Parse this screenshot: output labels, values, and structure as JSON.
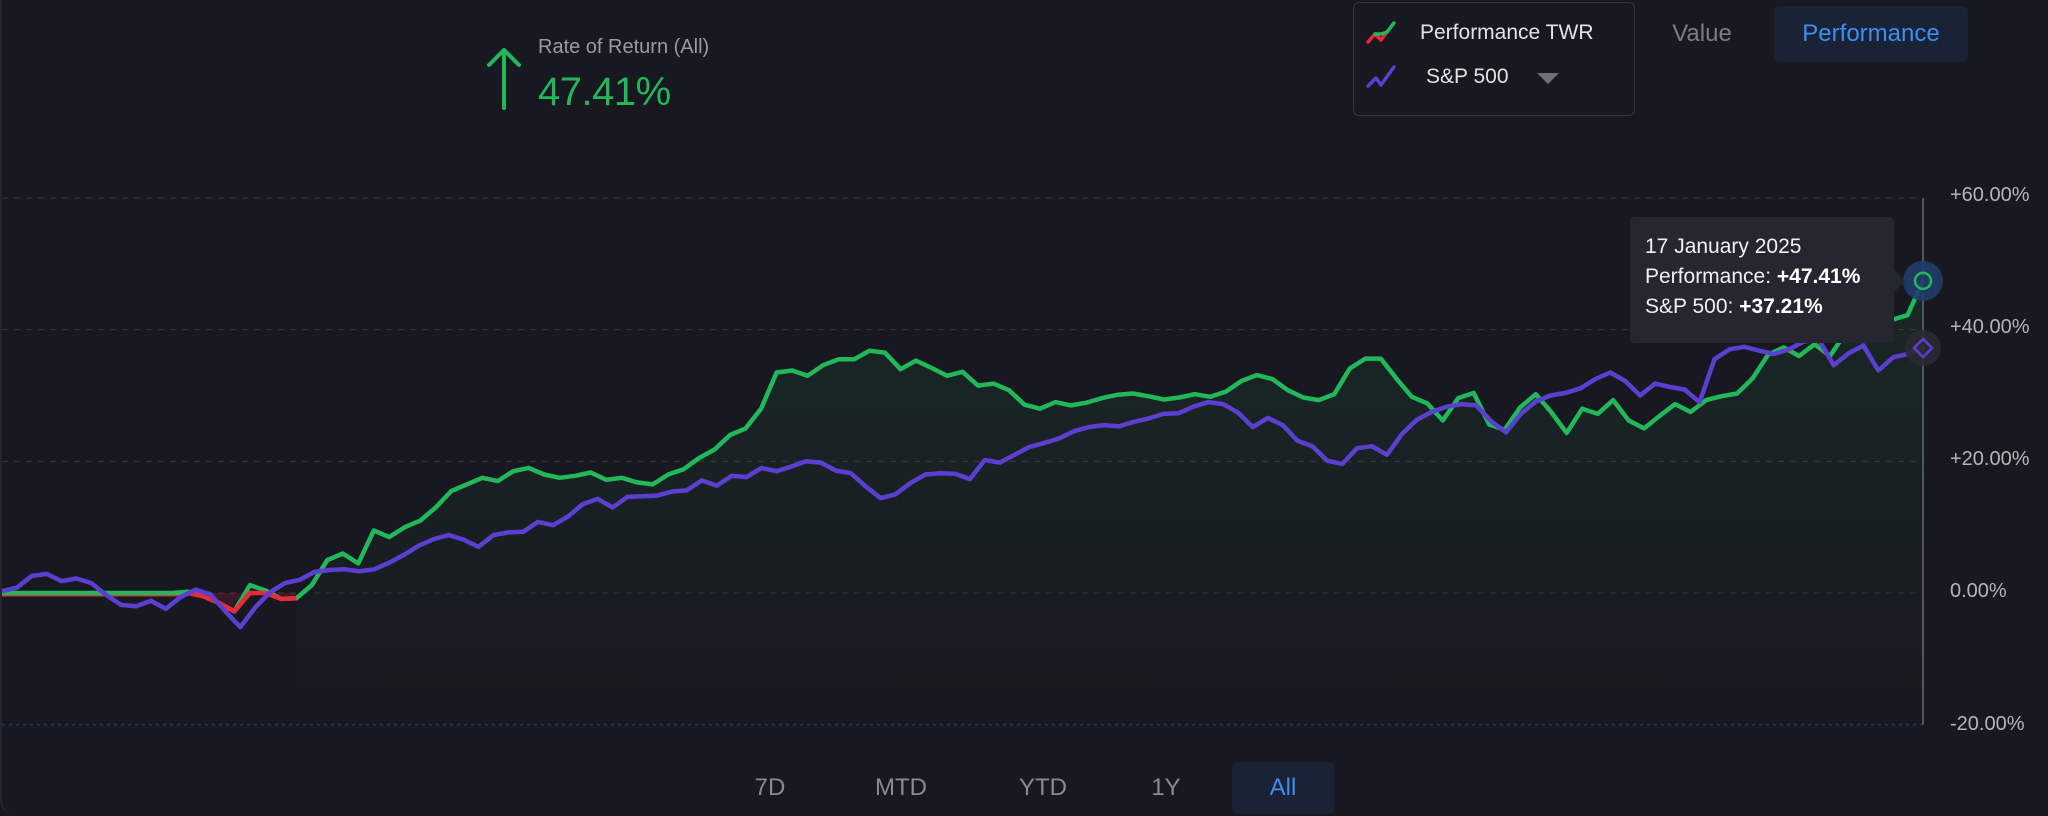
{
  "summary": {
    "label": "Rate of Return (All)",
    "value": "47.41%",
    "direction_icon": "arrow-up-icon",
    "color": "#22b85a"
  },
  "legend": {
    "items": [
      {
        "label": "Performance TWR",
        "icon": "line-chart-icon",
        "colors": [
          "#e8283c",
          "#22b85a"
        ]
      },
      {
        "label": "S&P 500",
        "icon": "line-chart-icon",
        "colors": [
          "#5b3fd0"
        ],
        "dropdown": "caret-down-icon"
      }
    ]
  },
  "view_toggle": {
    "options": [
      "Value",
      "Performance"
    ],
    "selected": "Performance"
  },
  "tooltip": {
    "date": "17 January 2025",
    "performance_label": "Performance: ",
    "performance_value": "+47.41%",
    "sp500_label": "S&P 500: ",
    "sp500_value": "+37.21%"
  },
  "range_buttons": {
    "options": [
      "7D",
      "MTD",
      "YTD",
      "1Y",
      "All"
    ],
    "selected": "All"
  },
  "colors": {
    "background": "#181820",
    "performance_positive": "#22b85a",
    "performance_negative": "#e8283c",
    "benchmark": "#5b3fd0",
    "accent": "#3d8ef0",
    "active_button_bg": "#1a2236"
  },
  "chart_data": {
    "type": "line",
    "title": "Rate of Return (All)",
    "xlabel": "",
    "ylabel": "",
    "ylim": [
      -20,
      60
    ],
    "y_ticks": [
      "+60.00%",
      "+40.00%",
      "+20.00%",
      "0.00%",
      "-20.00%"
    ],
    "grid": true,
    "legend_position": "top-right",
    "x_end_label": "17 January 2025",
    "series": [
      {
        "name": "Performance TWR",
        "color": "#22b85a",
        "negative_color": "#e8283c",
        "final_value": 47.41,
        "values": [
          0,
          0,
          0,
          0,
          0,
          0,
          0,
          0,
          0,
          0,
          0,
          0,
          0.2,
          -0.5,
          -1.5,
          -2.8,
          1.2,
          0.4,
          -0.9,
          -0.8,
          1.2,
          5,
          6,
          4.5,
          9.5,
          8.5,
          10,
          11,
          13,
          15.5,
          16.5,
          17.5,
          17,
          18.5,
          19,
          18,
          17.5,
          17.8,
          18.3,
          17.2,
          17.5,
          16.8,
          16.5,
          18,
          18.8,
          20.5,
          21.8,
          24,
          25,
          28,
          33.5,
          33.8,
          33,
          34.6,
          35.5,
          35.5,
          36.8,
          36.5,
          34,
          35.3,
          34.2,
          33,
          33.6,
          31.5,
          31.8,
          30.8,
          28.6,
          28,
          29,
          28.5,
          28.9,
          29.6,
          30.1,
          30.3,
          29.9,
          29.4,
          29.7,
          30.2,
          29.8,
          30.6,
          32.2,
          33.1,
          32.5,
          30.8,
          29.7,
          29.3,
          30.2,
          34.1,
          35.6,
          35.6,
          32.6,
          29.8,
          28.8,
          26.2,
          29.6,
          30.4,
          25.6,
          24.8,
          28.2,
          30.2,
          27.5,
          24.3,
          28,
          27.2,
          29.3,
          26.2,
          25,
          26.9,
          28.7,
          27.5,
          29.3,
          29.9,
          30.3,
          32.6,
          36.2,
          37.3,
          36,
          37.8,
          36,
          39.5,
          42.5,
          44.2,
          41.5,
          42.2,
          47.41
        ]
      },
      {
        "name": "S&P 500",
        "color": "#5b3fd0",
        "final_value": 37.21,
        "values": [
          0.3,
          0.8,
          2.6,
          2.9,
          1.8,
          2.2,
          1.5,
          -0.3,
          -1.8,
          -2,
          -1.2,
          -2.4,
          -0.6,
          0.5,
          -0.2,
          -2.8,
          -5.2,
          -2.2,
          0.1,
          1.5,
          2,
          3.2,
          3.5,
          3.6,
          3.3,
          3.6,
          4.6,
          5.8,
          7.2,
          8.2,
          8.8,
          8.1,
          7,
          8.8,
          9.2,
          9.3,
          10.8,
          10.3,
          11.6,
          13.5,
          14.3,
          13,
          14.6,
          14.7,
          14.8,
          15.4,
          15.6,
          17.1,
          16.3,
          17.8,
          17.6,
          19,
          18.5,
          19.2,
          20,
          19.8,
          18.6,
          18.2,
          16.2,
          14.4,
          15,
          16.7,
          18,
          18.2,
          18.1,
          17.3,
          20.2,
          19.8,
          21,
          22.2,
          22.8,
          23.5,
          24.6,
          25.2,
          25.5,
          25.3,
          26,
          26.5,
          27.2,
          27.3,
          28.3,
          29,
          28.7,
          27.4,
          25.2,
          26.6,
          25.5,
          23.1,
          22.3,
          20.1,
          19.6,
          22,
          22.3,
          21,
          24.1,
          26.3,
          27.5,
          28.3,
          28.7,
          28.5,
          26.1,
          24.4,
          27.2,
          29.1,
          30,
          30.4,
          31.1,
          32.5,
          33.5,
          32.2,
          30,
          31.8,
          31.3,
          30.9,
          29,
          35.5,
          37,
          37.4,
          36.8,
          36.3,
          37,
          38.2,
          38.5,
          34.6,
          36.4,
          37.6,
          33.8,
          35.8,
          36.3,
          37.21
        ]
      }
    ]
  }
}
